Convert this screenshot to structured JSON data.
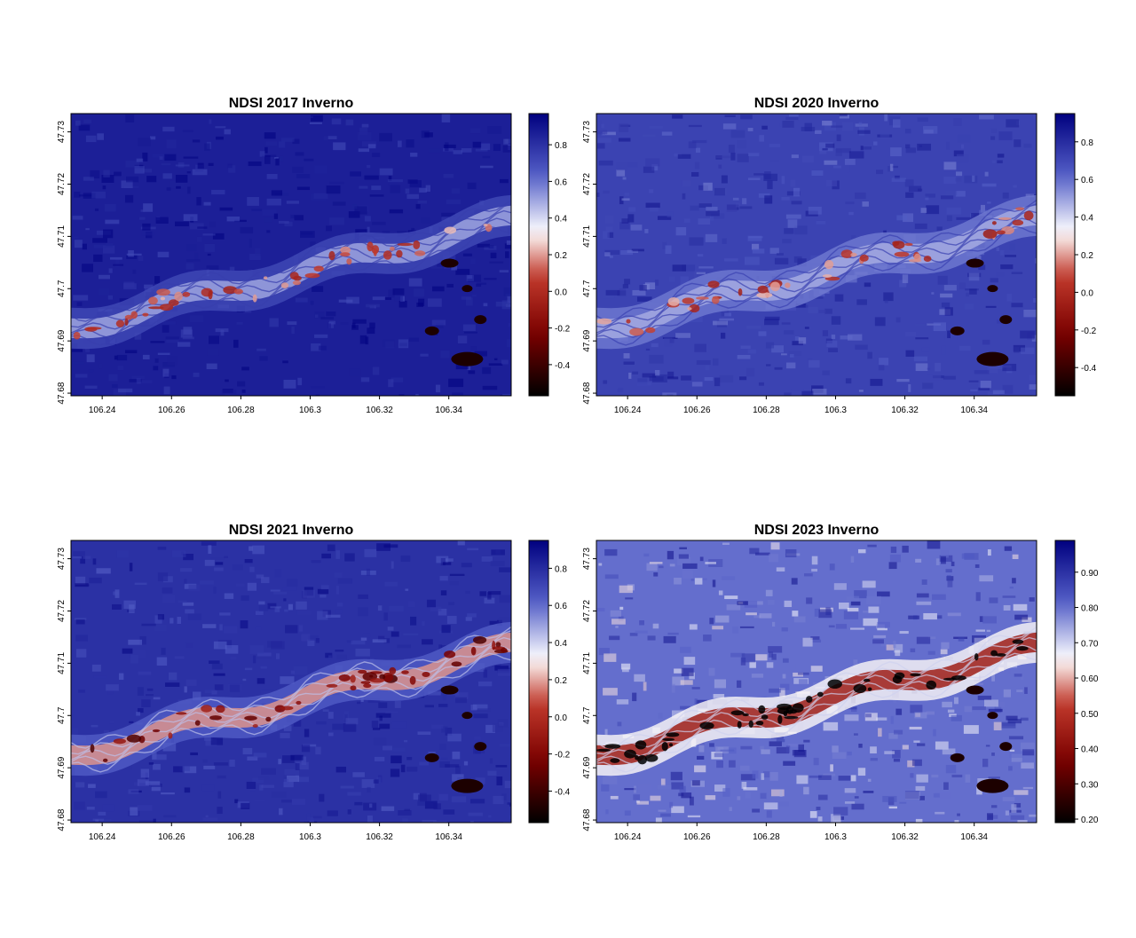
{
  "colors": {
    "low": "#000000",
    "dark_red": "#7a0000",
    "red": "#c0392b",
    "mid": "#ffffff",
    "blue": "#5560c8",
    "high": "#00007f"
  },
  "chart_data": [
    {
      "type": "heatmap",
      "title": "NDSI 2017 Inverno",
      "x_ticks": [
        "106.24",
        "106.26",
        "106.28",
        "106.3",
        "106.32",
        "106.34"
      ],
      "x_tick_values": [
        106.24,
        106.26,
        106.28,
        106.3,
        106.32,
        106.34
      ],
      "xlim": [
        106.231,
        106.358
      ],
      "y_ticks": [
        "47.68",
        "47.69",
        "47.7",
        "47.71",
        "47.72",
        "47.73"
      ],
      "y_tick_values": [
        47.68,
        47.69,
        47.7,
        47.71,
        47.72,
        47.73
      ],
      "ylim": [
        47.6795,
        47.7335
      ],
      "colorbar_ticks": [
        "0.8",
        "0.6",
        "0.4",
        "0.2",
        "0.0",
        "-0.2",
        "-0.4"
      ],
      "colorbar_tick_values": [
        0.8,
        0.6,
        0.4,
        0.2,
        0.0,
        -0.2,
        -0.4
      ],
      "value_range": [
        -0.57,
        0.97
      ],
      "background_value": 0.86,
      "river_value": 0.5
    },
    {
      "type": "heatmap",
      "title": "NDSI 2020 Inverno",
      "x_ticks": [
        "106.24",
        "106.26",
        "106.28",
        "106.3",
        "106.32",
        "106.34"
      ],
      "x_tick_values": [
        106.24,
        106.26,
        106.28,
        106.3,
        106.32,
        106.34
      ],
      "xlim": [
        106.231,
        106.358
      ],
      "y_ticks": [
        "47.68",
        "47.69",
        "47.7",
        "47.71",
        "47.72",
        "47.73"
      ],
      "y_tick_values": [
        47.68,
        47.69,
        47.7,
        47.71,
        47.72,
        47.73
      ],
      "ylim": [
        47.6795,
        47.7335
      ],
      "colorbar_ticks": [
        "0.8",
        "0.6",
        "0.4",
        "0.2",
        "0.0",
        "-0.2",
        "-0.4"
      ],
      "colorbar_tick_values": [
        0.8,
        0.6,
        0.4,
        0.2,
        0.0,
        -0.2,
        -0.4
      ],
      "value_range": [
        -0.55,
        0.95
      ],
      "background_value": 0.72,
      "river_value": 0.48
    },
    {
      "type": "heatmap",
      "title": "NDSI 2021 Inverno",
      "x_ticks": [
        "106.24",
        "106.26",
        "106.28",
        "106.3",
        "106.32",
        "106.34"
      ],
      "x_tick_values": [
        106.24,
        106.26,
        106.28,
        106.3,
        106.32,
        106.34
      ],
      "xlim": [
        106.231,
        106.358
      ],
      "y_ticks": [
        "47.68",
        "47.69",
        "47.7",
        "47.71",
        "47.72",
        "47.73"
      ],
      "y_tick_values": [
        47.68,
        47.69,
        47.7,
        47.71,
        47.72,
        47.73
      ],
      "ylim": [
        47.6795,
        47.7335
      ],
      "colorbar_ticks": [
        "0.8",
        "0.6",
        "0.4",
        "0.2",
        "0.0",
        "-0.2",
        "-0.4"
      ],
      "colorbar_tick_values": [
        0.8,
        0.6,
        0.4,
        0.2,
        0.0,
        -0.2,
        -0.4
      ],
      "value_range": [
        -0.57,
        0.95
      ],
      "background_value": 0.78,
      "river_value": 0.18
    },
    {
      "type": "heatmap",
      "title": "NDSI 2023 Inverno",
      "x_ticks": [
        "106.24",
        "106.26",
        "106.28",
        "106.3",
        "106.32",
        "106.34"
      ],
      "x_tick_values": [
        106.24,
        106.26,
        106.28,
        106.3,
        106.32,
        106.34
      ],
      "xlim": [
        106.231,
        106.358
      ],
      "y_ticks": [
        "47.68",
        "47.69",
        "47.7",
        "47.71",
        "47.72",
        "47.73"
      ],
      "y_tick_values": [
        47.68,
        47.69,
        47.7,
        47.71,
        47.72,
        47.73
      ],
      "ylim": [
        47.6795,
        47.7335
      ],
      "colorbar_ticks": [
        "0.90",
        "0.80",
        "0.70",
        "0.60",
        "0.50",
        "0.40",
        "0.30",
        "0.20"
      ],
      "colorbar_tick_values": [
        0.9,
        0.8,
        0.7,
        0.6,
        0.5,
        0.4,
        0.3,
        0.2
      ],
      "value_range": [
        0.19,
        0.99
      ],
      "background_value": 0.8,
      "river_value": 0.45
    }
  ]
}
